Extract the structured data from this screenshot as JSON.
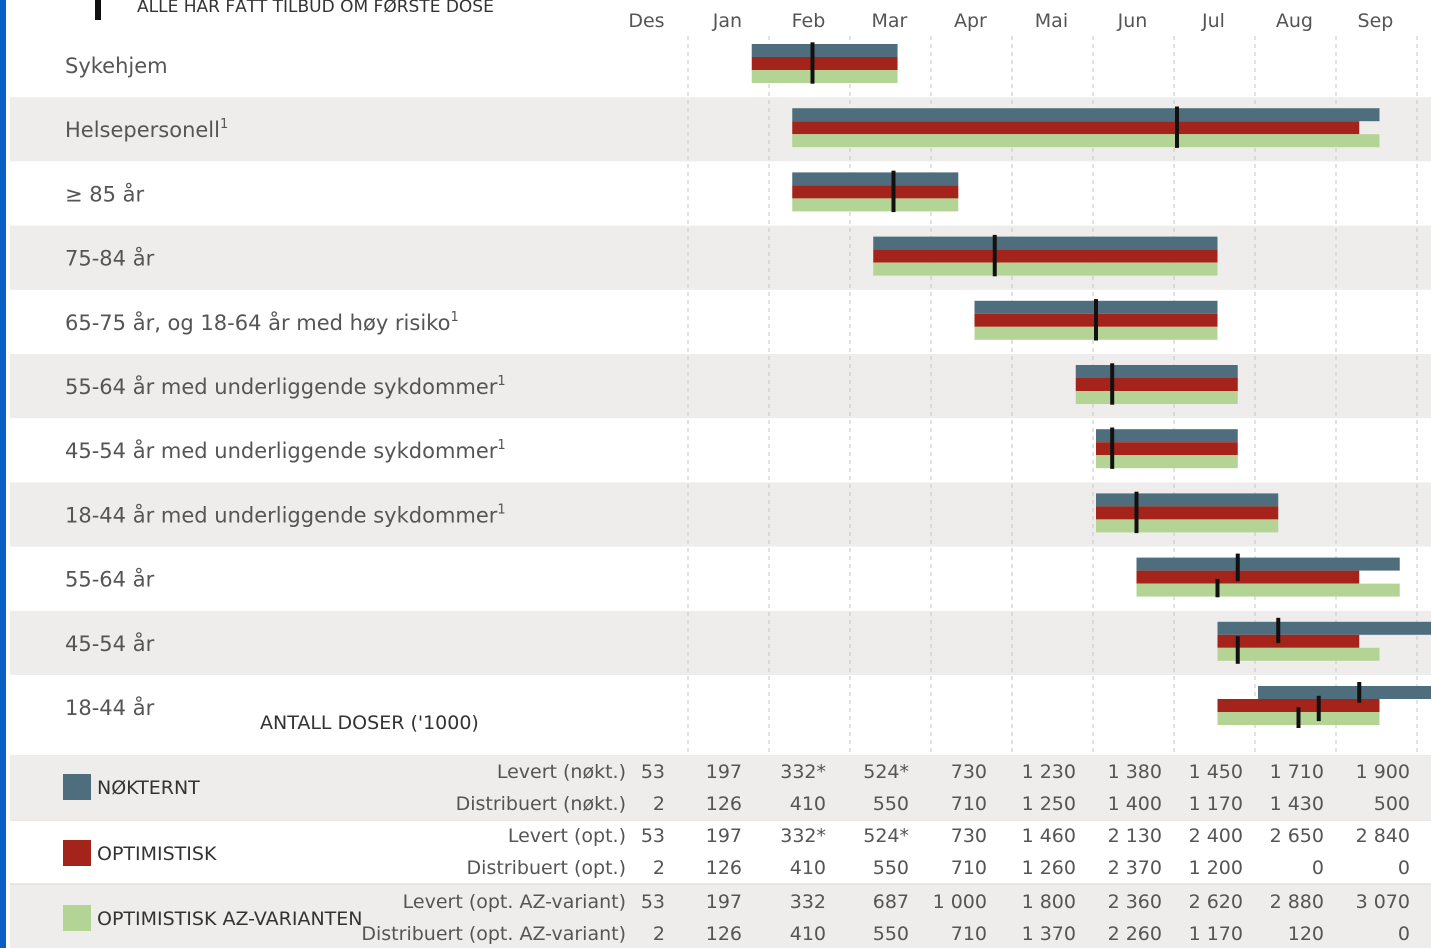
{
  "chart_data": {
    "type": "gantt",
    "top_note": "ALLE HAR FÅTT TILBUD OM FØRSTE DOSE",
    "months": [
      "Des",
      "Jan",
      "Feb",
      "Mar",
      "Apr",
      "Mai",
      "Jun",
      "Jul",
      "Aug",
      "Sep"
    ],
    "series": [
      {
        "key": "nokternt",
        "name": "NØKTERNT",
        "color": "#4e6e7d"
      },
      {
        "key": "optimistisk",
        "name": "OPTIMISTISK",
        "color": "#a4231b"
      },
      {
        "key": "az",
        "name": "OPTIMISTISK AZ-VARIANTEN",
        "color": "#b4d495"
      }
    ],
    "groups": [
      {
        "label": "Sykehjem",
        "sup": "",
        "bars": {
          "nokternt": [
            1.75,
            3.55
          ],
          "optimistisk": [
            1.75,
            3.55
          ],
          "az": [
            1.75,
            3.55
          ]
        },
        "markers": [
          {
            "x": 2.5,
            "y1": 0.05,
            "y2": 0.95
          }
        ]
      },
      {
        "label": "Helsepersonell",
        "sup": "1",
        "bars": {
          "nokternt": [
            2.25,
            9.5
          ],
          "optimistisk": [
            2.25,
            9.25
          ],
          "az": [
            2.25,
            9.5
          ]
        },
        "markers": [
          {
            "x": 7.0,
            "y1": 0.05,
            "y2": 0.95
          }
        ]
      },
      {
        "label": "≥ 85 år",
        "sup": "",
        "bars": {
          "nokternt": [
            2.25,
            4.3
          ],
          "optimistisk": [
            2.25,
            4.3
          ],
          "az": [
            2.25,
            4.3
          ]
        },
        "markers": [
          {
            "x": 3.5,
            "y1": 0.05,
            "y2": 0.95
          }
        ]
      },
      {
        "label": "75-84 år",
        "sup": "",
        "bars": {
          "nokternt": [
            3.25,
            7.5
          ],
          "optimistisk": [
            3.25,
            7.5
          ],
          "az": [
            3.25,
            7.5
          ]
        },
        "markers": [
          {
            "x": 4.75,
            "y1": 0.05,
            "y2": 0.95
          }
        ]
      },
      {
        "label": "65-75 år, og 18-64 år med høy risiko",
        "sup": "1",
        "bars": {
          "nokternt": [
            4.5,
            7.5
          ],
          "optimistisk": [
            4.5,
            7.5
          ],
          "az": [
            4.5,
            7.5
          ]
        },
        "markers": [
          {
            "x": 6.0,
            "y1": 0.05,
            "y2": 0.95
          }
        ]
      },
      {
        "label": "55-64 år med underliggende sykdommer",
        "sup": "1",
        "bars": {
          "nokternt": [
            5.75,
            7.75
          ],
          "optimistisk": [
            5.75,
            7.75
          ],
          "az": [
            5.75,
            7.75
          ]
        },
        "markers": [
          {
            "x": 6.2,
            "y1": 0.05,
            "y2": 0.95
          }
        ]
      },
      {
        "label": "45-54 år med underliggende sykdommer",
        "sup": "1",
        "bars": {
          "nokternt": [
            6.0,
            7.75
          ],
          "optimistisk": [
            6.0,
            7.75
          ],
          "az": [
            6.0,
            7.75
          ]
        },
        "markers": [
          {
            "x": 6.2,
            "y1": 0.05,
            "y2": 0.95
          }
        ]
      },
      {
        "label": "18-44 år med underliggende sykdommer",
        "sup": "1",
        "bars": {
          "nokternt": [
            6.0,
            8.25
          ],
          "optimistisk": [
            6.0,
            8.25
          ],
          "az": [
            6.0,
            8.25
          ]
        },
        "markers": [
          {
            "x": 6.5,
            "y1": 0.05,
            "y2": 0.95
          }
        ]
      },
      {
        "label": "55-64 år",
        "sup": "",
        "bars": {
          "nokternt": [
            6.5,
            9.75
          ],
          "optimistisk": [
            6.5,
            9.25
          ],
          "az": [
            6.5,
            9.75
          ]
        },
        "markers": [
          {
            "x": 7.75,
            "y1": 0.0,
            "y2": 0.6
          },
          {
            "x": 7.5,
            "y1": 0.55,
            "y2": 0.95
          }
        ]
      },
      {
        "label": "45-54 år",
        "sup": "",
        "bars": {
          "nokternt": [
            7.5,
            10.25
          ],
          "optimistisk": [
            7.5,
            9.25
          ],
          "az": [
            7.5,
            9.5
          ]
        },
        "markers": [
          {
            "x": 8.25,
            "y1": 0.0,
            "y2": 0.55
          },
          {
            "x": 7.75,
            "y1": 0.4,
            "y2": 1.0
          }
        ]
      },
      {
        "label": "18-44 år",
        "sup": "",
        "bars": {
          "nokternt": [
            8.0,
            11.0
          ],
          "optimistisk": [
            7.5,
            9.5
          ],
          "az": [
            7.5,
            9.5
          ]
        },
        "markers": [
          {
            "x": 9.25,
            "y1": 0.0,
            "y2": 0.45
          },
          {
            "x": 8.75,
            "y1": 0.3,
            "y2": 0.85
          },
          {
            "x": 8.5,
            "y1": 0.55,
            "y2": 1.0
          }
        ]
      }
    ],
    "table": {
      "title": "ANTALL DOSER ('1000)",
      "rows": [
        {
          "label": "Levert (nøkt.)",
          "values": [
            "53",
            "197",
            "332*",
            "524*",
            "730",
            "1 230",
            "1 380",
            "1 450",
            "1 710",
            "1 900"
          ]
        },
        {
          "label": "Distribuert (nøkt.)",
          "values": [
            "2",
            "126",
            "410",
            "550",
            "710",
            "1 250",
            "1 400",
            "1 170",
            "1 430",
            "500"
          ]
        },
        {
          "label": "Levert (opt.)",
          "values": [
            "53",
            "197",
            "332*",
            "524*",
            "730",
            "1 460",
            "2 130",
            "2 400",
            "2 650",
            "2 840"
          ]
        },
        {
          "label": "Distribuert (opt.)",
          "values": [
            "2",
            "126",
            "410",
            "550",
            "710",
            "1 260",
            "2 370",
            "1 200",
            "0",
            "0"
          ]
        },
        {
          "label": "Levert (opt. AZ-variant)",
          "values": [
            "53",
            "197",
            "332",
            "687",
            "1 000",
            "1 800",
            "2 360",
            "2 620",
            "2 880",
            "3 070"
          ]
        },
        {
          "label": "Distribuert (opt. AZ-variant)",
          "values": [
            "2",
            "126",
            "410",
            "550",
            "710",
            "1 370",
            "2 260",
            "1 170",
            "120",
            "0"
          ]
        }
      ]
    }
  }
}
